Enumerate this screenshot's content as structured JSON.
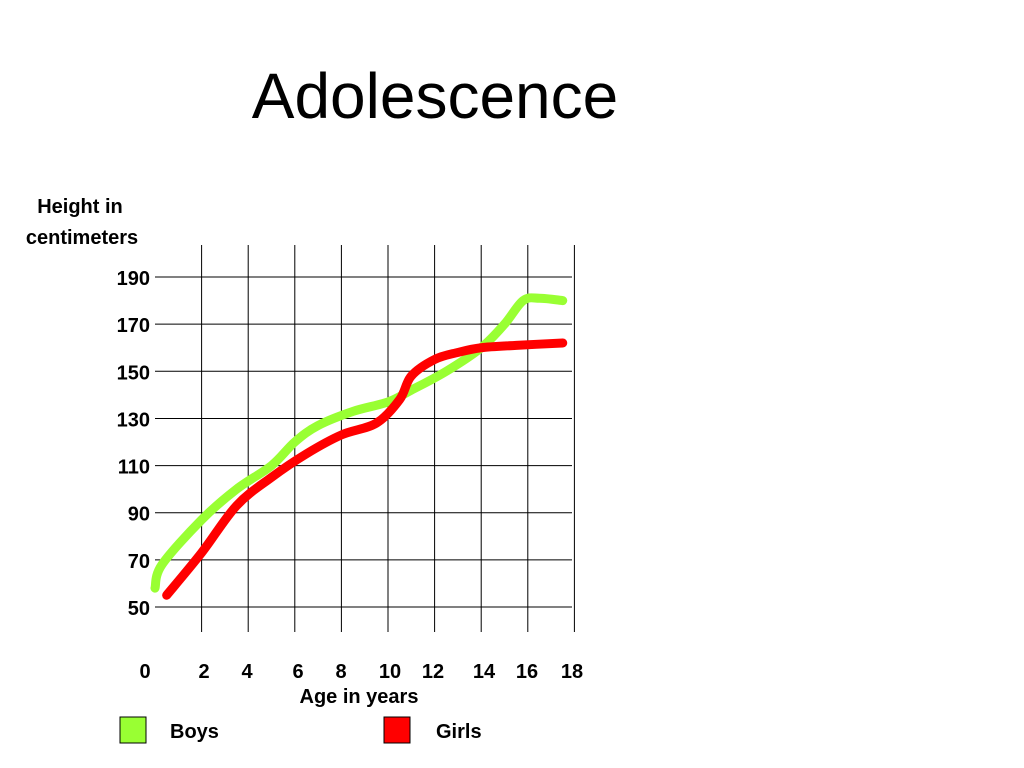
{
  "chart_data": {
    "type": "line",
    "title": "Adolescence",
    "ylabel_lines": [
      "Height in",
      "centimeters"
    ],
    "xlabel": "Age in years",
    "x_ticks": [
      0,
      2,
      4,
      6,
      8,
      10,
      12,
      14,
      16,
      18
    ],
    "y_ticks": [
      50,
      70,
      90,
      110,
      130,
      150,
      170,
      190
    ],
    "series": [
      {
        "name": "Boys",
        "color": "#99ff33",
        "points": [
          [
            0,
            58
          ],
          [
            0.3,
            68
          ],
          [
            2,
            87
          ],
          [
            3.5,
            100
          ],
          [
            5,
            110
          ],
          [
            6,
            120
          ],
          [
            7,
            127
          ],
          [
            8.5,
            133
          ],
          [
            10,
            137
          ],
          [
            11,
            142
          ],
          [
            12.5,
            150
          ],
          [
            14,
            160
          ],
          [
            15,
            170
          ],
          [
            15.8,
            180
          ],
          [
            16.5,
            181
          ],
          [
            17.5,
            180
          ]
        ]
      },
      {
        "name": "Girls",
        "color": "#ff0000",
        "points": [
          [
            0.5,
            55
          ],
          [
            2,
            73
          ],
          [
            3.5,
            93
          ],
          [
            5,
            105
          ],
          [
            6.5,
            115
          ],
          [
            8,
            123
          ],
          [
            9.5,
            128
          ],
          [
            10.5,
            138
          ],
          [
            11,
            148
          ],
          [
            12,
            155
          ],
          [
            13,
            158
          ],
          [
            14,
            160
          ],
          [
            15.5,
            161
          ],
          [
            17.5,
            162
          ]
        ]
      }
    ],
    "grid": true,
    "legend_position": "bottom"
  }
}
